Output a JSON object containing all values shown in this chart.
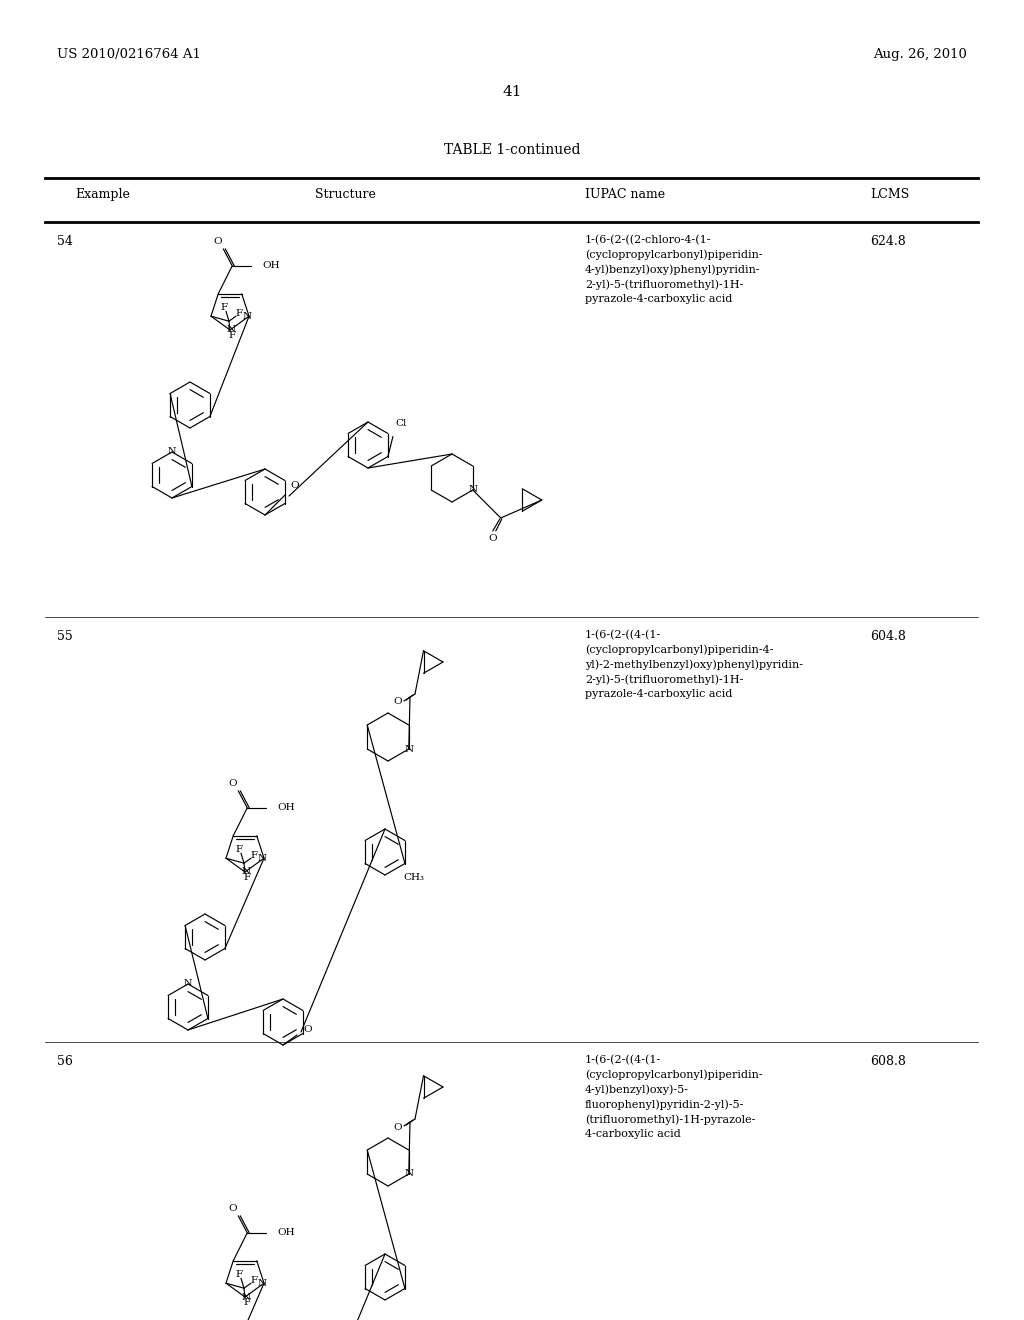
{
  "page_header_left": "US 2010/0216764 A1",
  "page_header_right": "Aug. 26, 2010",
  "page_number": "41",
  "table_title": "TABLE 1-continued",
  "rows": [
    {
      "example": "54",
      "iupac": "1-(6-(2-((2-chloro-4-(1-\n(cyclopropylcarbonyl)piperidin-\n4-yl)benzyl)oxy)phenyl)pyridin-\n2-yl)-5-(trifluoromethyl)-1H-\npyrazole-4-carboxylic acid",
      "lcms": "624.8"
    },
    {
      "example": "55",
      "iupac": "1-(6-(2-((4-(1-\n(cyclopropylcarbonyl)piperidin-4-\nyl)-2-methylbenzyl)oxy)phenyl)pyridin-\n2-yl)-5-(trifluoromethyl)-1H-\npyrazole-4-carboxylic acid",
      "lcms": "604.8"
    },
    {
      "example": "56",
      "iupac": "1-(6-(2-((4-(1-\n(cyclopropylcarbonyl)piperidin-\n4-yl)benzyl)oxy)-5-\nfluorophenyl)pyridin-2-yl)-5-\n(trifluoromethyl)-1H-pyrazole-\n4-carboxylic acid",
      "lcms": "608.8"
    }
  ]
}
